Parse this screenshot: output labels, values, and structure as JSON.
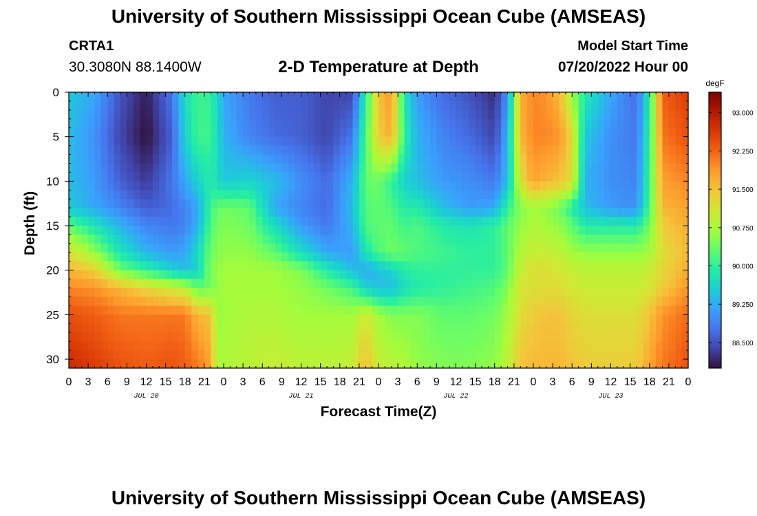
{
  "header": {
    "title": "University of Southern Mississippi Ocean Cube (AMSEAS)",
    "station": "CRTA1",
    "coords": "30.3080N  88.1400W",
    "subtitle": "2-D Temperature at Depth",
    "start_label": "Model Start Time",
    "start_value": "07/20/2022 Hour 00"
  },
  "footer": {
    "title": "University of Southern Mississippi Ocean Cube (AMSEAS)"
  },
  "chart_data": {
    "type": "heatmap",
    "title": "2-D Temperature at Depth",
    "xlabel": "Forecast Time(Z)",
    "ylabel": "Depth (ft)",
    "x_unit": "hours since 07/20/2022 00Z",
    "x_range": [
      0,
      96
    ],
    "x_tick_values": [
      0,
      3,
      6,
      9,
      12,
      15,
      18,
      21,
      24,
      27,
      30,
      33,
      36,
      39,
      42,
      45,
      48,
      51,
      54,
      57,
      60,
      63,
      66,
      69,
      72,
      75,
      78,
      81,
      84,
      87,
      90,
      93,
      96
    ],
    "x_tick_labels": [
      "0",
      "3",
      "6",
      "9",
      "12",
      "15",
      "18",
      "21",
      "0",
      "3",
      "6",
      "9",
      "12",
      "15",
      "18",
      "21",
      "0",
      "3",
      "6",
      "9",
      "12",
      "15",
      "18",
      "21",
      "0",
      "3",
      "6",
      "9",
      "12",
      "15",
      "18",
      "21",
      "0"
    ],
    "date_labels": [
      {
        "label": "JUL 20",
        "at_hour": 12
      },
      {
        "label": "JUL 21",
        "at_hour": 36
      },
      {
        "label": "JUL 22",
        "at_hour": 60
      },
      {
        "label": "JUL 23",
        "at_hour": 84
      }
    ],
    "y_range": [
      0,
      31
    ],
    "y_reversed": true,
    "y_ticks": [
      0,
      5,
      10,
      15,
      20,
      25,
      30
    ],
    "colorbar": {
      "unit": "degF",
      "min": 88.0,
      "max": 93.4,
      "ticks": [
        "93.000",
        "92.250",
        "91.500",
        "90.750",
        "90.000",
        "89.250",
        "88.500"
      ],
      "tick_values": [
        93.0,
        92.25,
        91.5,
        90.75,
        90.0,
        89.25,
        88.5
      ],
      "colors": [
        "#30123b",
        "#4145ab",
        "#4675ed",
        "#39a2fc",
        "#1bcfd4",
        "#24eca6",
        "#61fc6c",
        "#a4fc3b",
        "#d1e834",
        "#f3c63a",
        "#fe9b2d",
        "#f36315",
        "#d93806",
        "#b11901",
        "#7a0402"
      ]
    },
    "depths_ft": [
      0,
      5,
      10,
      13,
      15,
      18,
      20,
      22,
      25,
      31
    ],
    "times_hr": [
      0,
      4,
      8,
      12,
      16,
      18,
      20,
      22,
      23,
      24,
      28,
      32,
      36,
      40,
      44,
      46,
      48,
      50,
      52,
      54,
      58,
      62,
      66,
      68,
      70,
      72,
      74,
      76,
      78,
      80,
      84,
      88,
      90,
      92,
      96
    ],
    "temperatures_degF": [
      [
        89.5,
        89.2,
        88.5,
        88.1,
        88.8,
        89.7,
        90.1,
        90.0,
        89.6,
        89.2,
        88.8,
        88.6,
        88.6,
        88.4,
        88.4,
        89.9,
        91.5,
        91.9,
        89.8,
        89.1,
        88.7,
        88.5,
        88.2,
        89.0,
        91.7,
        92.0,
        91.9,
        91.6,
        90.6,
        89.9,
        89.2,
        88.7,
        89.9,
        92.3,
        92.6
      ],
      [
        89.4,
        89.0,
        88.4,
        88.0,
        88.6,
        89.6,
        90.1,
        90.1,
        89.7,
        89.3,
        88.9,
        88.7,
        88.6,
        88.4,
        88.8,
        90.2,
        91.4,
        91.7,
        90.0,
        89.3,
        88.9,
        88.7,
        88.4,
        89.3,
        91.6,
        92.0,
        92.0,
        91.9,
        91.3,
        89.5,
        89.0,
        88.8,
        90.0,
        92.1,
        92.4
      ],
      [
        89.4,
        89.1,
        88.6,
        88.3,
        88.8,
        89.2,
        89.6,
        89.9,
        89.7,
        89.5,
        89.6,
        89.4,
        89.0,
        88.7,
        89.3,
        90.3,
        90.4,
        90.0,
        89.6,
        89.4,
        89.1,
        89.0,
        88.8,
        89.4,
        91.1,
        91.8,
        91.6,
        91.5,
        91.2,
        89.3,
        89.0,
        88.9,
        90.1,
        91.8,
        92.0
      ],
      [
        89.5,
        89.2,
        88.9,
        88.6,
        88.7,
        88.9,
        89.2,
        90.1,
        90.3,
        90.4,
        90.3,
        89.2,
        88.9,
        88.7,
        89.4,
        90.2,
        90.3,
        90.2,
        89.9,
        89.9,
        89.4,
        89.1,
        89.2,
        90.0,
        90.5,
        90.7,
        90.6,
        90.4,
        89.9,
        89.4,
        89.1,
        89.0,
        90.2,
        91.6,
        91.8
      ],
      [
        90.3,
        89.8,
        89.3,
        88.9,
        88.8,
        88.9,
        89.3,
        90.2,
        90.4,
        90.5,
        90.4,
        89.7,
        89.1,
        88.8,
        89.3,
        90.2,
        90.3,
        90.3,
        90.1,
        90.2,
        89.9,
        89.8,
        90.0,
        90.3,
        90.6,
        90.8,
        90.7,
        90.6,
        90.3,
        89.9,
        89.9,
        89.9,
        90.4,
        91.4,
        91.7
      ],
      [
        91.2,
        90.6,
        89.8,
        89.3,
        89.1,
        89.2,
        89.7,
        90.4,
        90.5,
        90.6,
        90.6,
        90.3,
        89.7,
        89.2,
        89.1,
        89.8,
        90.2,
        90.4,
        90.3,
        90.2,
        90.1,
        90.0,
        90.0,
        90.3,
        90.8,
        91.0,
        91.0,
        90.9,
        90.7,
        90.6,
        90.6,
        90.6,
        90.7,
        91.2,
        91.6
      ],
      [
        91.6,
        91.4,
        90.4,
        90.0,
        89.6,
        89.4,
        89.6,
        90.5,
        90.6,
        90.7,
        90.7,
        90.7,
        90.5,
        89.9,
        89.4,
        89.2,
        89.4,
        89.6,
        89.9,
        90.0,
        90.0,
        90.0,
        90.0,
        90.3,
        91.0,
        91.2,
        91.2,
        91.1,
        91.0,
        90.9,
        90.9,
        90.9,
        91.0,
        91.3,
        91.7
      ],
      [
        92.0,
        91.9,
        91.6,
        91.3,
        91.0,
        90.9,
        90.3,
        90.4,
        90.6,
        90.7,
        90.7,
        90.7,
        90.6,
        90.4,
        90.1,
        89.6,
        89.4,
        89.4,
        89.7,
        89.9,
        90.0,
        90.1,
        90.2,
        90.5,
        91.1,
        91.2,
        91.2,
        91.2,
        91.1,
        91.0,
        91.0,
        91.0,
        91.1,
        91.4,
        91.9
      ],
      [
        92.4,
        92.3,
        92.1,
        92.1,
        92.1,
        92.1,
        91.6,
        91.5,
        90.6,
        90.7,
        90.8,
        90.8,
        90.7,
        90.7,
        90.7,
        91.1,
        90.7,
        90.5,
        90.5,
        90.5,
        90.3,
        90.3,
        90.4,
        90.7,
        91.2,
        91.4,
        91.5,
        91.5,
        91.3,
        91.2,
        91.2,
        91.2,
        91.5,
        91.9,
        92.2
      ],
      [
        92.8,
        92.6,
        92.4,
        92.3,
        92.4,
        92.3,
        92.1,
        91.8,
        90.7,
        90.8,
        90.9,
        91.0,
        90.9,
        90.9,
        91.0,
        91.6,
        91.0,
        90.9,
        90.8,
        90.6,
        90.5,
        90.5,
        90.6,
        90.9,
        91.5,
        91.6,
        91.6,
        91.6,
        91.5,
        91.4,
        91.4,
        91.4,
        91.8,
        92.1,
        92.4
      ]
    ]
  }
}
